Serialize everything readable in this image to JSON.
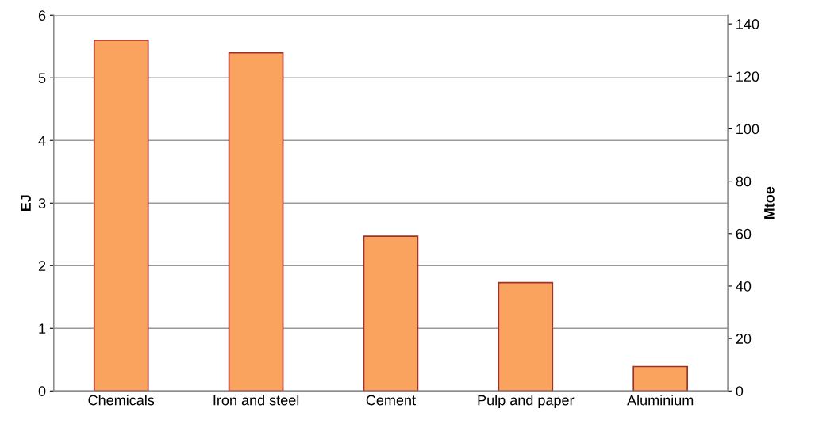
{
  "chart_data": {
    "type": "bar",
    "categories": [
      "Chemicals",
      "Iron and steel",
      "Cement",
      "Pulp and paper",
      "Aluminium"
    ],
    "values": [
      5.6,
      5.4,
      2.47,
      1.73,
      0.39
    ],
    "color": "#f9a35e",
    "ylabel": "EJ",
    "y2label": "Mtoe",
    "ylim": [
      0,
      6
    ],
    "yticks": [
      0,
      1,
      2,
      3,
      4,
      5,
      6
    ],
    "y2lim": [
      0,
      143.3
    ],
    "y2ticks": [
      0,
      20,
      40,
      60,
      80,
      100,
      120,
      140
    ],
    "grid": "y",
    "legend": false
  }
}
